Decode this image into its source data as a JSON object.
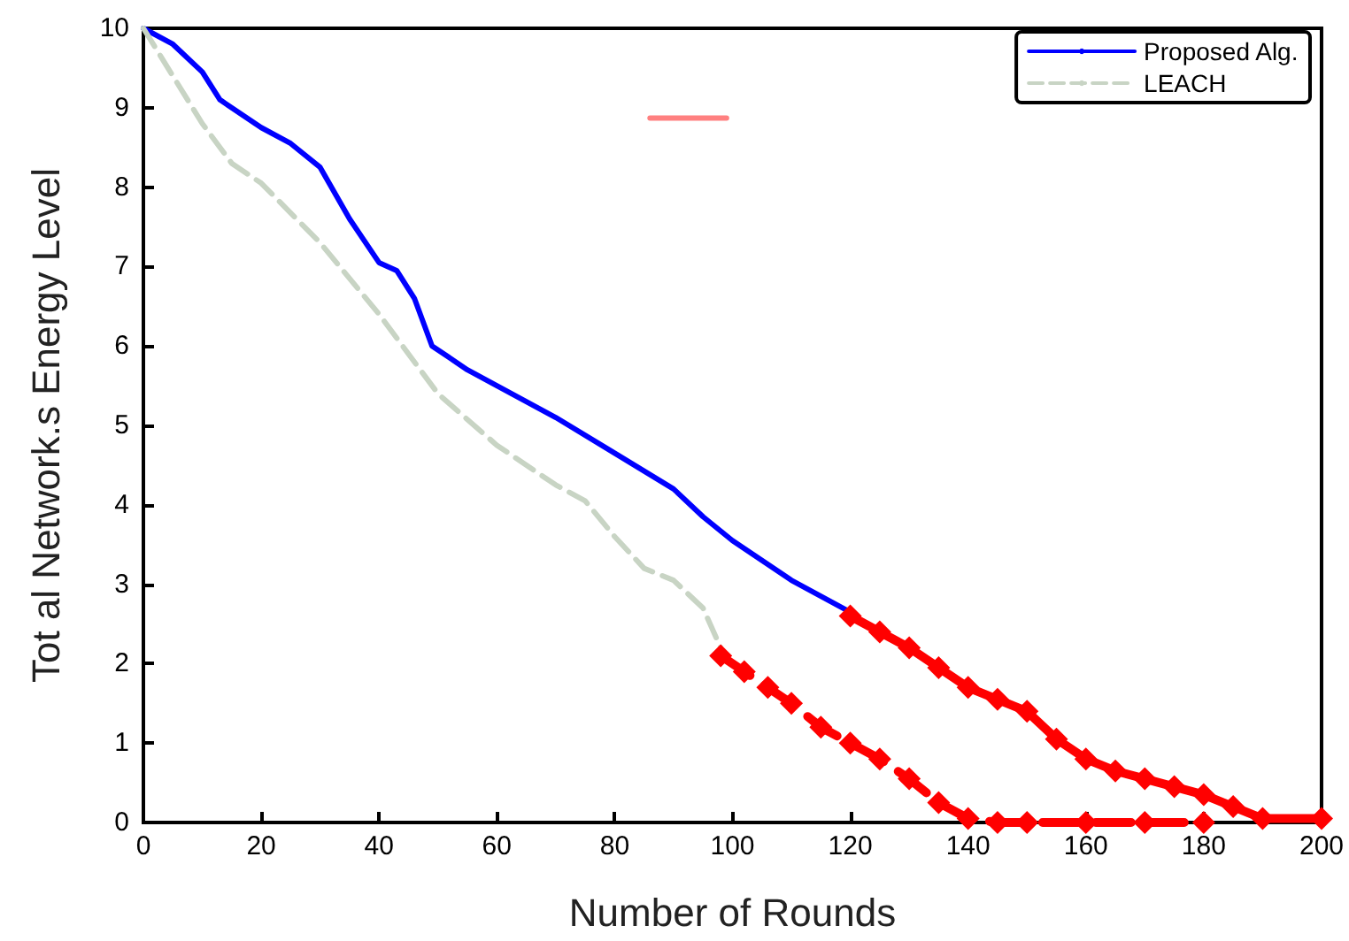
{
  "chart_data": {
    "type": "line",
    "xlabel": "Number of Rounds",
    "ylabel": "Tot al Network.s Energy Level",
    "xlim": [
      0,
      200
    ],
    "ylim": [
      0,
      10
    ],
    "xticks": [
      0,
      20,
      40,
      60,
      80,
      100,
      120,
      140,
      160,
      180,
      200
    ],
    "yticks": [
      0,
      1,
      2,
      3,
      4,
      5,
      6,
      7,
      8,
      9,
      10
    ],
    "grid": false,
    "legend": "top right",
    "marker": "none",
    "line_style": "solid",
    "series": [
      {
        "name": "Proposed Alg.",
        "color": "#0000ff",
        "x": [
          0,
          5,
          10,
          13,
          20,
          25,
          30,
          35,
          40,
          43,
          46,
          49,
          55,
          60,
          70,
          80,
          90,
          95,
          100,
          110,
          120
        ],
        "values": [
          10,
          9.8,
          9.45,
          9.1,
          8.75,
          8.55,
          8.25,
          7.6,
          7.05,
          6.95,
          6.6,
          6.0,
          5.7,
          5.5,
          5.1,
          4.65,
          4.2,
          3.85,
          3.55,
          3.05,
          2.65
        ]
      },
      {
        "name": "LEACH",
        "color": "#c8d4c4",
        "line_style": "dashed",
        "x": [
          0,
          5,
          10,
          15,
          20,
          30,
          40,
          50,
          60,
          70,
          75,
          80,
          85,
          90,
          95,
          98
        ],
        "values": [
          10,
          9.4,
          8.8,
          8.3,
          8.05,
          7.3,
          6.4,
          5.4,
          4.75,
          4.25,
          4.05,
          3.6,
          3.2,
          3.05,
          2.7,
          2.2
        ]
      },
      {
        "color": "#ff0000",
        "marker": "diamond",
        "x": [
          120,
          125,
          130,
          135,
          140,
          145,
          150,
          155,
          160,
          165,
          170,
          175,
          180,
          185,
          190,
          200
        ],
        "values": [
          2.6,
          2.4,
          2.2,
          1.95,
          1.7,
          1.55,
          1.4,
          1.05,
          0.8,
          0.65,
          0.55,
          0.45,
          0.35,
          0.2,
          0.05,
          0.05
        ]
      },
      {
        "color": "#ff0000",
        "marker": "diamond",
        "line_style": "dashed",
        "x": [
          98,
          102,
          106,
          110,
          115,
          120,
          125,
          130,
          135,
          140,
          145,
          150,
          160,
          170,
          180
        ],
        "values": [
          2.1,
          1.9,
          1.7,
          1.5,
          1.2,
          1.0,
          0.8,
          0.55,
          0.25,
          0.05,
          0,
          0,
          0,
          0,
          0
        ]
      },
      {
        "color": "#ff8080",
        "x": [
          86,
          99
        ],
        "values": [
          8.87,
          8.87
        ]
      }
    ]
  }
}
